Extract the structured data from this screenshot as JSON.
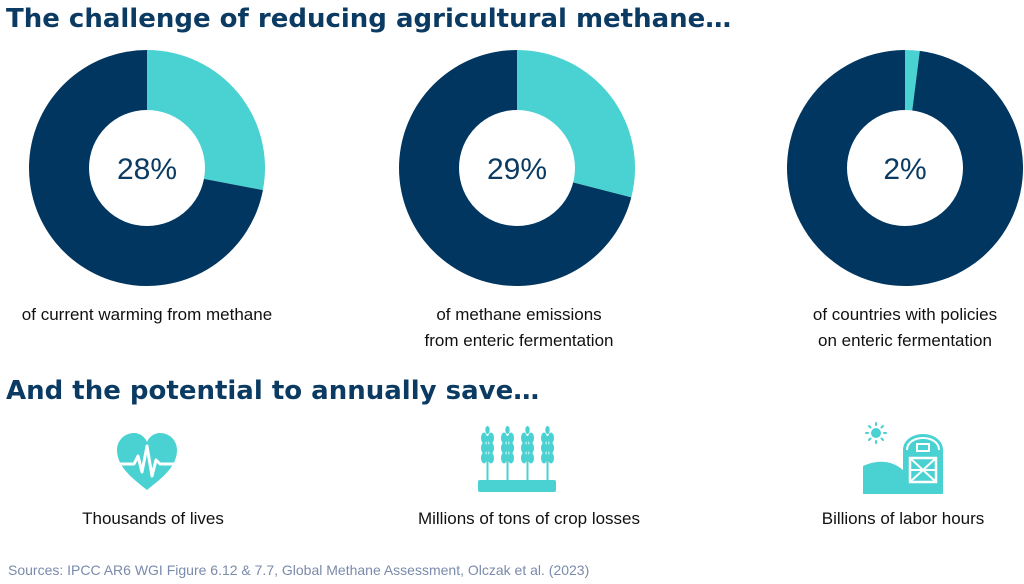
{
  "headings": {
    "challenge": "The challenge of reducing agricultural methane…",
    "potential": "And the potential to annually save…"
  },
  "colors": {
    "dark": "#003660",
    "teal": "#4ad1d1",
    "heading": "#0b3b62",
    "source": "#7a8bab"
  },
  "chart_data": [
    {
      "type": "pie",
      "center_label": "28%",
      "caption_lines": [
        "of current warming from methane"
      ],
      "slices": [
        {
          "value": 28,
          "color": "#4ad1d1"
        },
        {
          "value": 72,
          "color": "#003660"
        }
      ]
    },
    {
      "type": "pie",
      "center_label": "29%",
      "caption_lines": [
        "of methane emissions",
        "from enteric fermentation"
      ],
      "slices": [
        {
          "value": 29,
          "color": "#4ad1d1"
        },
        {
          "value": 71,
          "color": "#003660"
        }
      ]
    },
    {
      "type": "pie",
      "center_label": "2%",
      "caption_lines": [
        "of countries with policies",
        "on enteric fermentation"
      ],
      "slices": [
        {
          "value": 2,
          "color": "#4ad1d1"
        },
        {
          "value": 98,
          "color": "#003660"
        }
      ]
    }
  ],
  "benefits": [
    {
      "icon": "heartbeat-icon",
      "label": "Thousands of lives"
    },
    {
      "icon": "wheat-crop-icon",
      "label": "Millions of tons of crop losses"
    },
    {
      "icon": "barn-sun-icon",
      "label": "Billions of labor hours"
    }
  ],
  "source": "Sources: IPCC AR6 WGI Figure 6.12 & 7.7, Global Methane Assessment, Olczak et al. (2023)"
}
